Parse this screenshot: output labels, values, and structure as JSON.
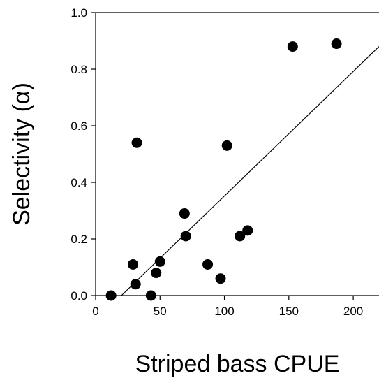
{
  "chart_data": {
    "type": "scatter",
    "xlabel": "Striped bass CPUE",
    "ylabel": "Selectivity (α)",
    "xlim": [
      0,
      220
    ],
    "ylim": [
      0,
      1.0
    ],
    "x_ticks": [
      0,
      50,
      100,
      150,
      200
    ],
    "y_ticks": [
      0.0,
      0.2,
      0.4,
      0.6,
      0.8,
      1.0
    ],
    "x_tick_labels": [
      "0",
      "50",
      "100",
      "150",
      "200"
    ],
    "y_tick_labels": [
      "0.0",
      "0.2",
      "0.4",
      "0.6",
      "0.8",
      "1.0"
    ],
    "grid": false,
    "points": [
      {
        "x": 12,
        "y": 0.0
      },
      {
        "x": 29,
        "y": 0.11
      },
      {
        "x": 31,
        "y": 0.04
      },
      {
        "x": 32,
        "y": 0.54
      },
      {
        "x": 43,
        "y": 0.0
      },
      {
        "x": 47,
        "y": 0.08
      },
      {
        "x": 50,
        "y": 0.12
      },
      {
        "x": 69,
        "y": 0.29
      },
      {
        "x": 70,
        "y": 0.21
      },
      {
        "x": 87,
        "y": 0.11
      },
      {
        "x": 97,
        "y": 0.06
      },
      {
        "x": 102,
        "y": 0.53
      },
      {
        "x": 112,
        "y": 0.21
      },
      {
        "x": 118,
        "y": 0.23
      },
      {
        "x": 153,
        "y": 0.88
      },
      {
        "x": 187,
        "y": 0.89
      }
    ],
    "fit_line": {
      "x": [
        20,
        220
      ],
      "y": [
        0.0,
        0.88
      ]
    }
  }
}
